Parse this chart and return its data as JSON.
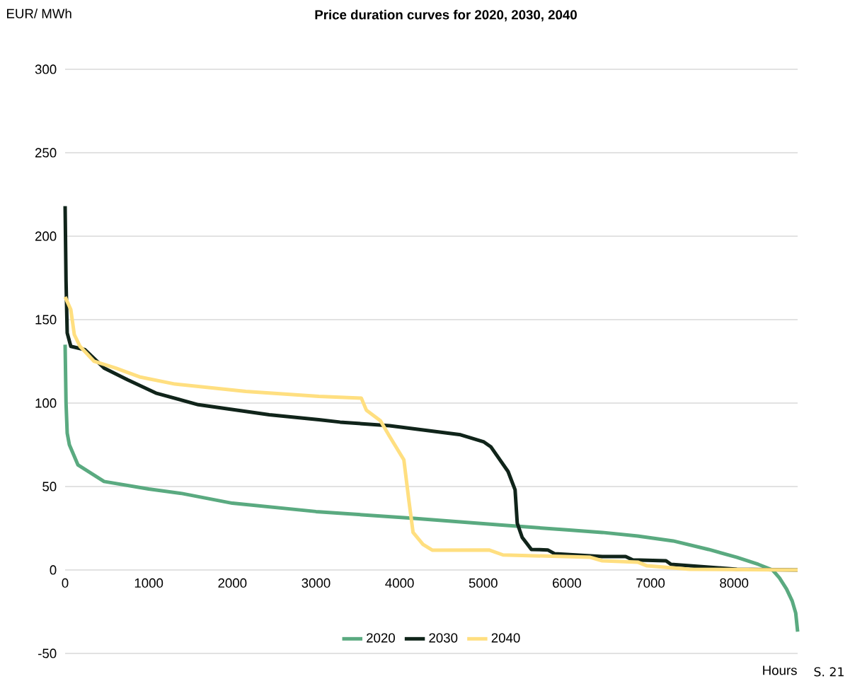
{
  "chart_data": {
    "type": "line",
    "title": "Price duration curves for 2020, 2030, 2040",
    "ylabel": "EUR/ MWh",
    "xlabel": "Hours",
    "annotations": [
      "S. 21"
    ],
    "xlim": [
      0,
      8760
    ],
    "xticks": [
      0,
      1000,
      2000,
      3000,
      4000,
      5000,
      6000,
      7000,
      8000
    ],
    "ylim": [
      -50,
      300
    ],
    "yticks": [
      -50,
      0,
      50,
      100,
      150,
      200,
      250,
      300
    ],
    "grid": "y",
    "legend": "bottom",
    "marker": "none",
    "line_style": "solid",
    "series": [
      {
        "name": "2020",
        "color": "#5aaa80",
        "x": [
          0,
          11,
          25,
          51,
          153,
          466,
          1000,
          1398,
          2000,
          3000,
          4144,
          5195,
          6000,
          6424,
          6847,
          7271,
          7695,
          8034,
          8288,
          8460,
          8542,
          8627,
          8695,
          8737,
          8760
        ],
        "values": [
          135,
          100,
          82,
          75,
          63,
          53,
          48.5,
          45.8,
          40,
          35,
          31,
          27,
          24,
          22.5,
          20.3,
          17.4,
          12.3,
          7.6,
          3.4,
          0,
          -4.7,
          -11.4,
          -18.6,
          -25.8,
          -37
        ]
      },
      {
        "name": "2030",
        "color": "#10241a",
        "x": [
          0,
          11,
          25,
          68,
          237,
          466,
          746,
          1085,
          1593,
          2441,
          3034,
          3288,
          3881,
          4729,
          5008,
          5093,
          5297,
          5381,
          5407,
          5466,
          5576,
          5771,
          5856,
          6424,
          6703,
          6788,
          7186,
          7245,
          7695,
          8034,
          8760
        ],
        "values": [
          218,
          173,
          142,
          134,
          132,
          121,
          114,
          106,
          99,
          93,
          90,
          88.6,
          86.4,
          81,
          76.7,
          73.7,
          59,
          48,
          28,
          19.5,
          12.3,
          12,
          9.7,
          8,
          8,
          6,
          5.5,
          3.4,
          1.7,
          0.4,
          0
        ]
      },
      {
        "name": "2040",
        "color": "#ffdf80",
        "x": [
          0,
          68,
          110,
          178,
          347,
          602,
          890,
          1314,
          2161,
          3034,
          3542,
          3602,
          3771,
          3881,
          4051,
          4110,
          4161,
          4280,
          4390,
          5068,
          5237,
          6280,
          6424,
          6847,
          6958,
          7466,
          8760
        ],
        "values": [
          163.6,
          156,
          141,
          134,
          125,
          121,
          115.7,
          111.4,
          107,
          104,
          103,
          95.8,
          89.4,
          80,
          66,
          42,
          22.5,
          15.3,
          11.9,
          12,
          9,
          7.6,
          5.5,
          4.7,
          2.5,
          0.4,
          0
        ]
      }
    ]
  }
}
